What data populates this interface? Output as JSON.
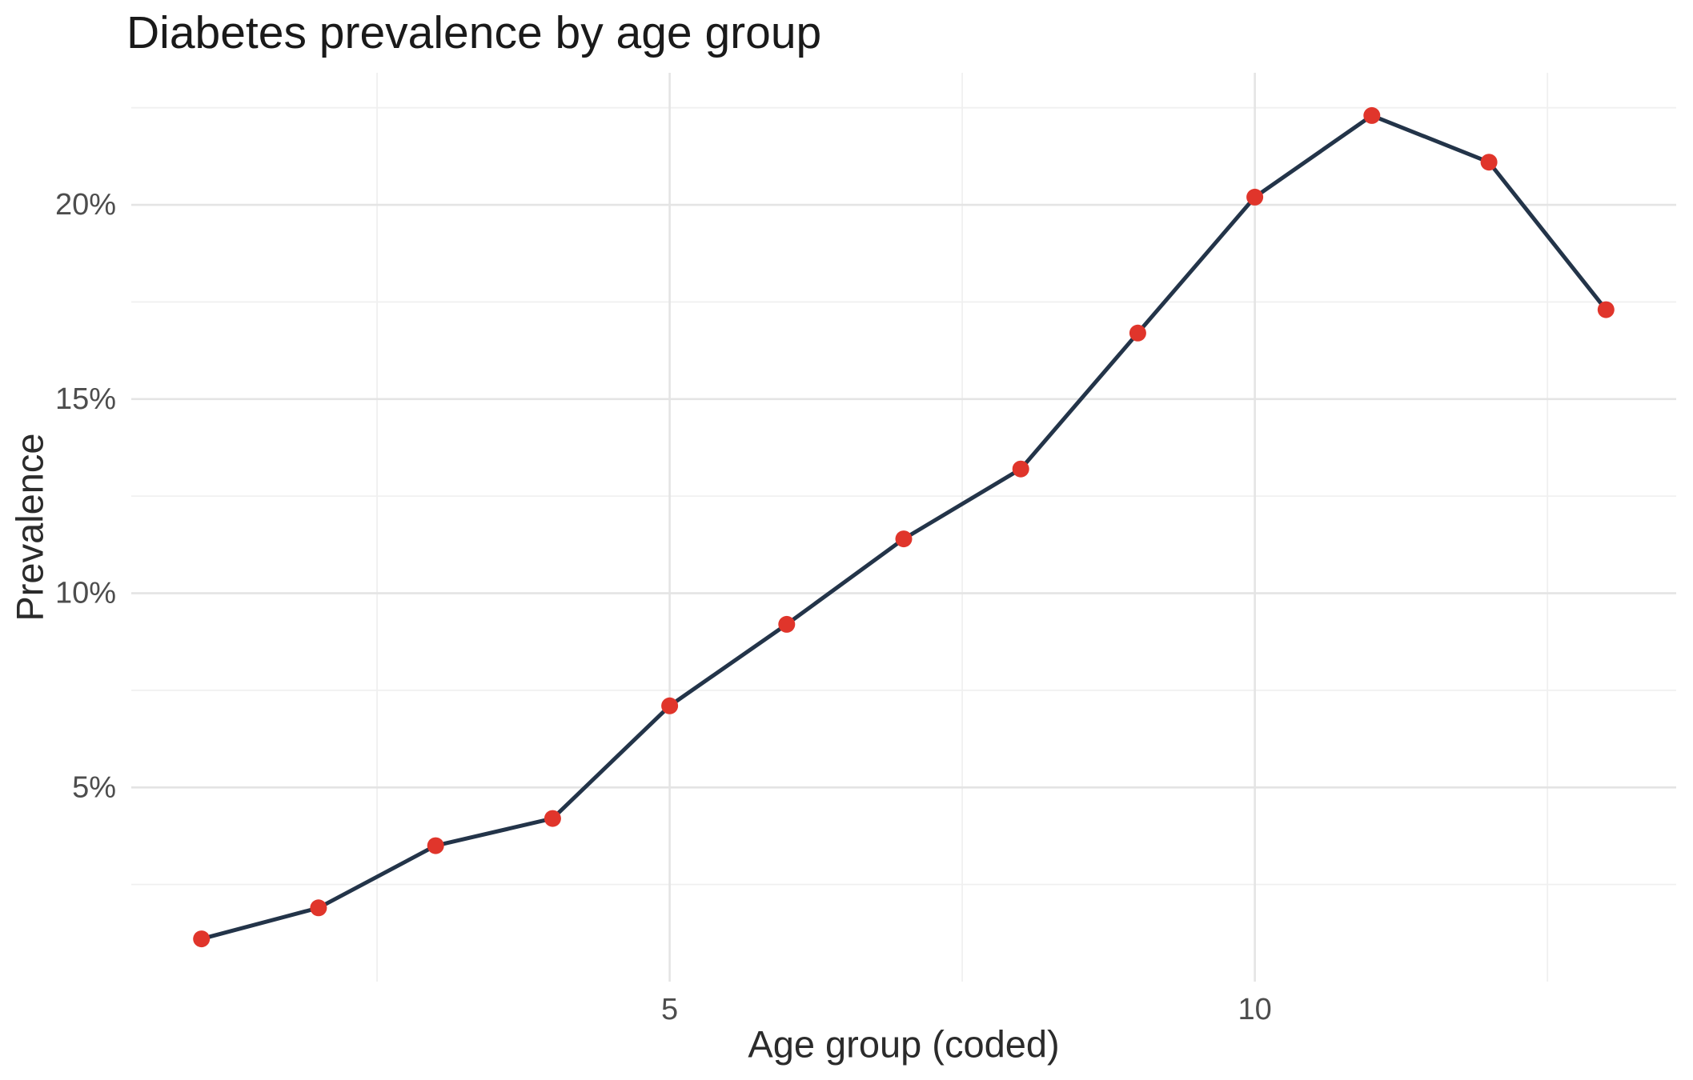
{
  "chart_data": {
    "type": "line",
    "title": "Diabetes prevalence by age group",
    "xlabel": "Age group (coded)",
    "ylabel": "Prevalence",
    "x": [
      1,
      2,
      3,
      4,
      5,
      6,
      7,
      8,
      9,
      10,
      11,
      12,
      13
    ],
    "series": [
      {
        "name": "Prevalence",
        "values": [
          1.1,
          1.9,
          3.5,
          4.2,
          7.1,
          9.2,
          11.4,
          13.2,
          16.7,
          20.2,
          22.3,
          21.1,
          17.3
        ]
      }
    ],
    "xlim": [
      0.4,
      13.6
    ],
    "ylim": [
      0,
      23.4
    ],
    "x_major_ticks": [
      5,
      10
    ],
    "x_tick_labels": [
      "5",
      "10"
    ],
    "x_minor_gridlines": [
      2.5,
      7.5,
      12.5
    ],
    "y_major_ticks": [
      5,
      10,
      15,
      20
    ],
    "y_tick_labels": [
      "5%",
      "10%",
      "15%",
      "20%"
    ],
    "y_minor_gridlines": [
      2.5,
      7.5,
      12.5,
      17.5,
      22.5
    ],
    "grid": true,
    "legend": false,
    "marker": "point",
    "colors": {
      "line": "#233449",
      "point": "#e0352b",
      "grid_major": "#e4e4e4",
      "grid_minor": "#f0f0f0",
      "tick_label": "#4d4d4d",
      "axis_title": "#2b2b2b",
      "title": "#1a1a1a",
      "background": "#ffffff"
    }
  }
}
